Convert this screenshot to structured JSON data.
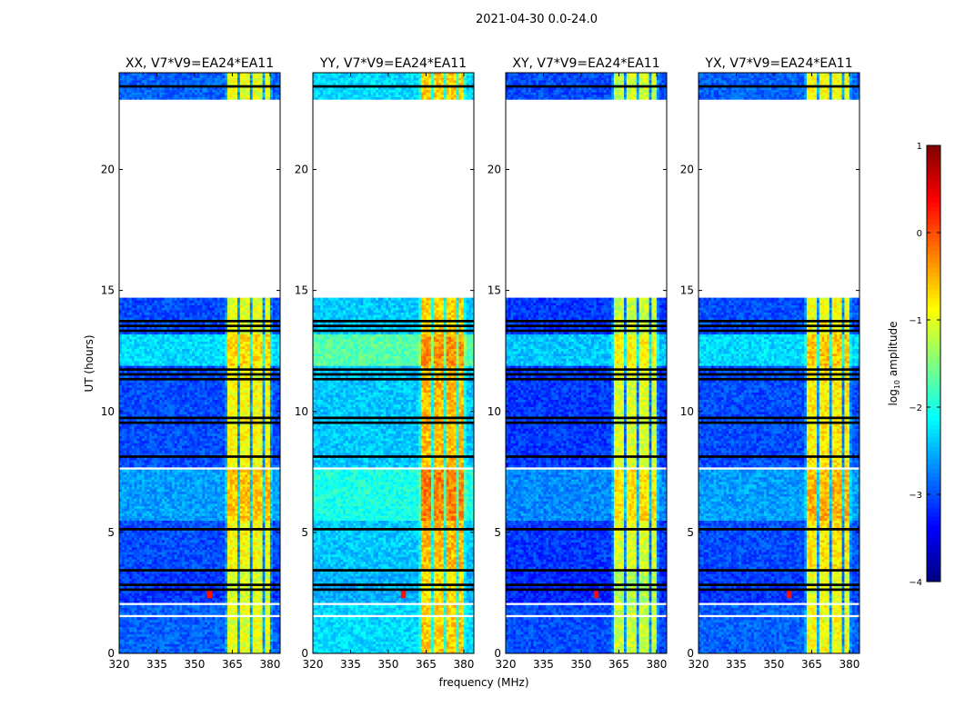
{
  "chart_data": {
    "type": "heatmap",
    "suptitle": "2021-04-30 0.0-24.0",
    "xlabel": "frequency (MHz)",
    "ylabel": "UT (hours)",
    "xlim": [
      320,
      384
    ],
    "ylim": [
      0,
      24
    ],
    "xticks": [
      "320",
      "335",
      "350",
      "365",
      "380"
    ],
    "xtick_values": [
      320,
      335,
      350,
      365,
      380
    ],
    "yticks": [
      "0",
      "5",
      "10",
      "15",
      "20"
    ],
    "ytick_values": [
      0,
      5,
      10,
      15,
      20
    ],
    "panels": [
      {
        "title": "XX, V7*V9=EA24*EA11",
        "bg_offset": 0.0,
        "band_offset": 0.0
      },
      {
        "title": "YY, V7*V9=EA24*EA11",
        "bg_offset": 0.6,
        "band_offset": 0.35
      },
      {
        "title": "XY, V7*V9=EA24*EA11",
        "bg_offset": -0.1,
        "band_offset": -0.15
      },
      {
        "title": "YX, V7*V9=EA24*EA11",
        "bg_offset": 0.0,
        "band_offset": 0.1
      }
    ],
    "time_segments": [
      {
        "t": [
          0,
          2.0
        ],
        "bg": -2.9,
        "band": -1.0
      },
      {
        "t": [
          2.0,
          3.5
        ],
        "bg": -3.1,
        "band": -1.1
      },
      {
        "t": [
          3.5,
          5.5
        ],
        "bg": -3.0,
        "band": -0.9
      },
      {
        "t": [
          5.5,
          7.6
        ],
        "bg": -2.6,
        "band": -0.6
      },
      {
        "t": [
          7.6,
          11.9
        ],
        "bg": -3.0,
        "band": -0.9
      },
      {
        "t": [
          11.9,
          13.2
        ],
        "bg": -2.3,
        "band": -0.7
      },
      {
        "t": [
          13.2,
          14.65
        ],
        "bg": -3.0,
        "band": -1.0
      },
      {
        "t": [
          22.9,
          24.0
        ],
        "bg": -2.9,
        "band": -1.0
      }
    ],
    "no_data_ranges": [
      [
        14.65,
        22.9
      ],
      [
        7.6,
        7.7
      ],
      [
        2.0,
        2.1
      ],
      [
        1.55,
        1.65
      ],
      [
        0.3,
        0.35
      ]
    ],
    "flagged_ranges": [
      [
        23.3,
        23.6
      ],
      [
        13.2,
        13.9
      ],
      [
        11.3,
        11.9
      ],
      [
        9.5,
        9.8
      ],
      [
        8.0,
        8.3
      ],
      [
        5.0,
        5.3
      ],
      [
        3.3,
        3.5
      ],
      [
        2.6,
        2.9
      ]
    ],
    "band_channels": [
      [
        363,
        367.5
      ],
      [
        368.5,
        372.5
      ],
      [
        373.5,
        377
      ],
      [
        378,
        380.5
      ]
    ],
    "rfi_spike": {
      "freq": 356,
      "time": 2.5,
      "value": 0.3
    },
    "colorbar": {
      "label": "log10 amplitude",
      "label_main": "log",
      "label_sub": "10",
      "label_rest": " amplitude",
      "range": [
        -4,
        1
      ],
      "ticks": [
        "−4",
        "−3",
        "−2",
        "−1",
        "0",
        "1"
      ],
      "tick_values": [
        -4,
        -3,
        -2,
        -1,
        0,
        1
      ]
    }
  }
}
